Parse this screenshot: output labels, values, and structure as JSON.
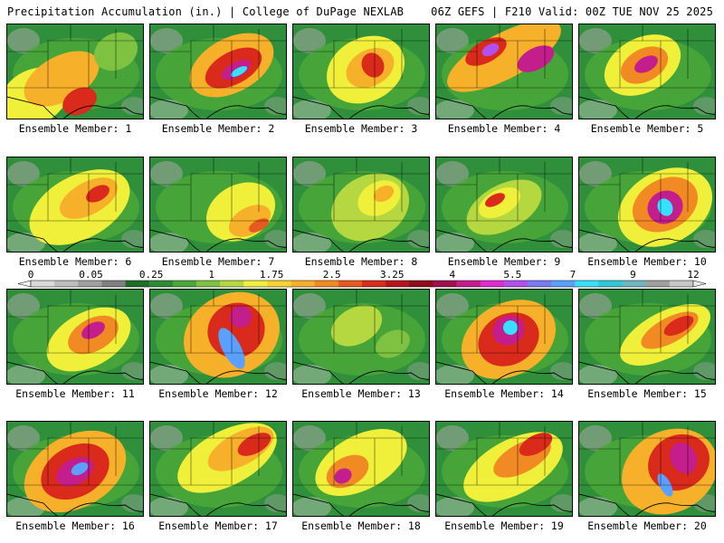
{
  "header": {
    "title_left": "Precipitation Accumulation (in.) | College of DuPage NEXLAB",
    "title_right": "06Z GEFS | F210 Valid: 00Z TUE NOV 25 2025"
  },
  "colorbar": {
    "tick_labels": [
      "0",
      "0.05",
      "0.25",
      "1",
      "1.75",
      "2.5",
      "3.25",
      "4",
      "5.5",
      "7",
      "9",
      "12"
    ],
    "colors": [
      "#d9d9d9",
      "#bdbdbd",
      "#a0a0a0",
      "#808080",
      "#1e6e2a",
      "#2e8b35",
      "#4aa83a",
      "#7fc241",
      "#b5d840",
      "#f0f03a",
      "#f8d22e",
      "#f7b02a",
      "#f28a24",
      "#e8591f",
      "#d92a1c",
      "#b8141c",
      "#8f0d1c",
      "#a01050",
      "#c41d8c",
      "#e02cd0",
      "#b050f0",
      "#7a7af5",
      "#5aa0ff",
      "#38e0ff",
      "#30c8d8",
      "#6fb7c0",
      "#a0a0a0",
      "#c8c8c8"
    ]
  },
  "members": [
    {
      "label": "Ensemble Member: 1"
    },
    {
      "label": "Ensemble Member: 2"
    },
    {
      "label": "Ensemble Member: 3"
    },
    {
      "label": "Ensemble Member: 4"
    },
    {
      "label": "Ensemble Member: 5"
    },
    {
      "label": "Ensemble Member: 6"
    },
    {
      "label": "Ensemble Member: 7"
    },
    {
      "label": "Ensemble Member: 8"
    },
    {
      "label": "Ensemble Member: 9"
    },
    {
      "label": "Ensemble Member: 10"
    },
    {
      "label": "Ensemble Member: 11"
    },
    {
      "label": "Ensemble Member: 12"
    },
    {
      "label": "Ensemble Member: 13"
    },
    {
      "label": "Ensemble Member: 14"
    },
    {
      "label": "Ensemble Member: 15"
    },
    {
      "label": "Ensemble Member: 16"
    },
    {
      "label": "Ensemble Member: 17"
    },
    {
      "label": "Ensemble Member: 18"
    },
    {
      "label": "Ensemble Member: 19"
    },
    {
      "label": "Ensemble Member: 20"
    }
  ]
}
